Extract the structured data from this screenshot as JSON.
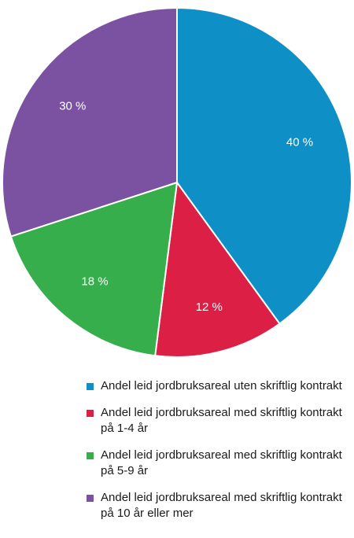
{
  "chart_data": {
    "type": "pie",
    "slices": [
      {
        "label": "Andel leid jordbruksareal uten skriftlig kontrakt",
        "value": 40,
        "value_label": "40 %",
        "color": "#0e8fc6"
      },
      {
        "label": "Andel leid jordbruksareal med skriftlig kontrakt på 1-4 år",
        "value": 12,
        "value_label": "12 %",
        "color": "#dc1f45"
      },
      {
        "label": "Andel leid jordbruksareal med skriftlig kontrakt på 5-9 år",
        "value": 18,
        "value_label": "18 %",
        "color": "#36ae4b"
      },
      {
        "label": "Andel leid jordbruksareal med skriftlig kontrakt på 10 år eller mer",
        "value": 30,
        "value_label": "30 %",
        "color": "#7b52a1"
      }
    ],
    "start": "top",
    "direction": "clockwise",
    "legend_position": "bottom"
  }
}
